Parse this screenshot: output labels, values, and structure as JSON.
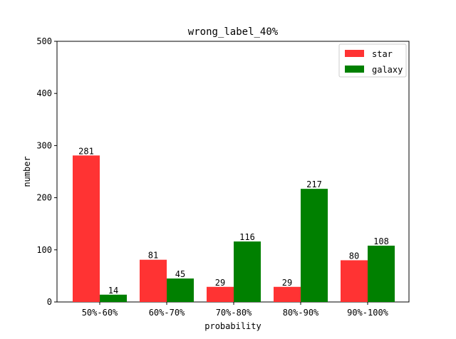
{
  "chart_data": {
    "type": "bar",
    "title": "wrong_label_40%",
    "xlabel": "probability",
    "ylabel": "number",
    "categories": [
      "50%-60%",
      "60%-70%",
      "70%-80%",
      "80%-90%",
      "90%-100%"
    ],
    "series": [
      {
        "name": "star",
        "values": [
          281,
          81,
          29,
          29,
          80
        ],
        "color": "#ff3333"
      },
      {
        "name": "galaxy",
        "values": [
          14,
          45,
          116,
          217,
          108
        ],
        "color": "#008000"
      }
    ],
    "ylim": [
      0,
      500
    ],
    "yticks": [
      0,
      100,
      200,
      300,
      400,
      500
    ],
    "grid": false,
    "legend_position": "top-right"
  }
}
